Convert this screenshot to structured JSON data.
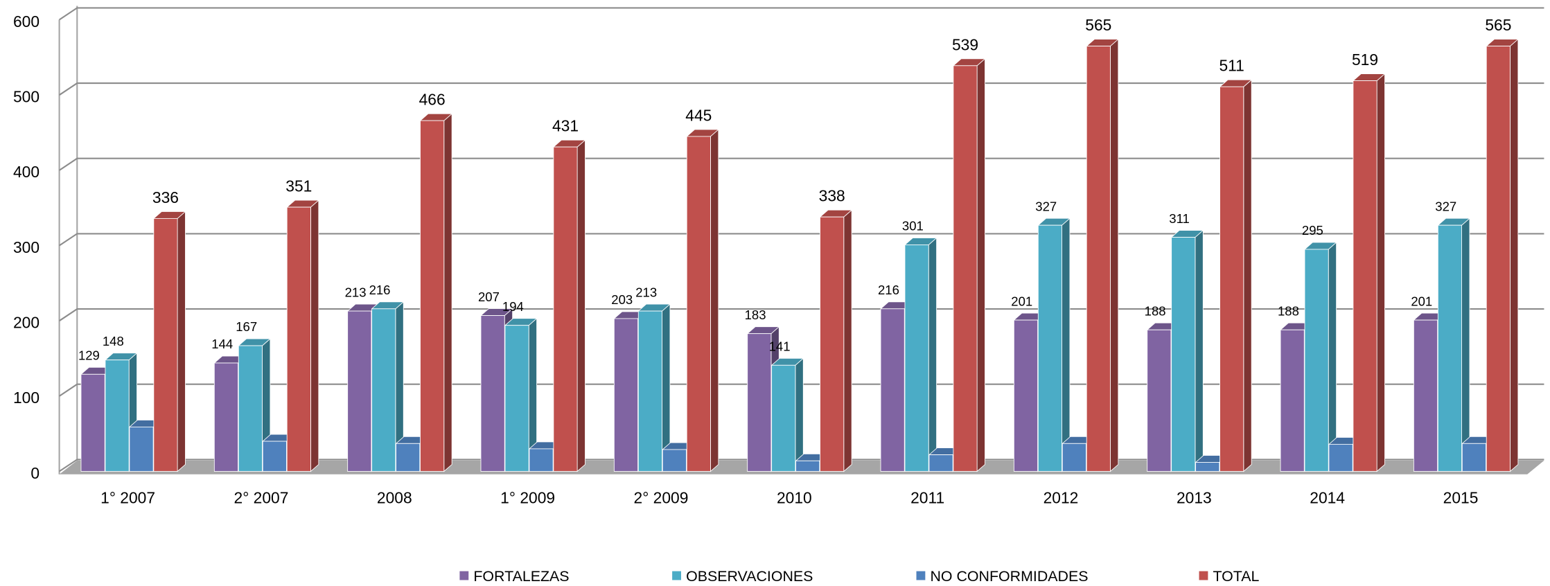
{
  "chart_data": {
    "type": "bar3d",
    "categories": [
      "1° 2007",
      "2° 2007",
      "2008",
      "1° 2009",
      "2° 2009",
      "2010",
      "2011",
      "2012",
      "2013",
      "2014",
      "2015"
    ],
    "series": [
      {
        "name": "FORTALEZAS",
        "color": "#8064a2",
        "values": [
          129,
          144,
          213,
          207,
          203,
          183,
          216,
          201,
          188,
          188,
          201
        ]
      },
      {
        "name": "OBSERVACIONES",
        "color": "#4bacc6",
        "values": [
          148,
          167,
          216,
          194,
          213,
          141,
          301,
          327,
          311,
          295,
          327
        ]
      },
      {
        "name": "NO CONFORMIDADES",
        "color": "#4f81bd",
        "values": [
          59,
          40,
          37,
          30,
          29,
          14,
          22,
          37,
          12,
          36,
          37
        ],
        "show_labels": false
      },
      {
        "name": "TOTAL",
        "color": "#c0504d",
        "values": [
          336,
          351,
          466,
          431,
          445,
          338,
          539,
          565,
          511,
          519,
          565
        ]
      }
    ],
    "ylim": [
      0,
      600
    ],
    "yticks": [
      0,
      100,
      200,
      300,
      400,
      500,
      600
    ],
    "grid": true,
    "legend": "bottom"
  }
}
